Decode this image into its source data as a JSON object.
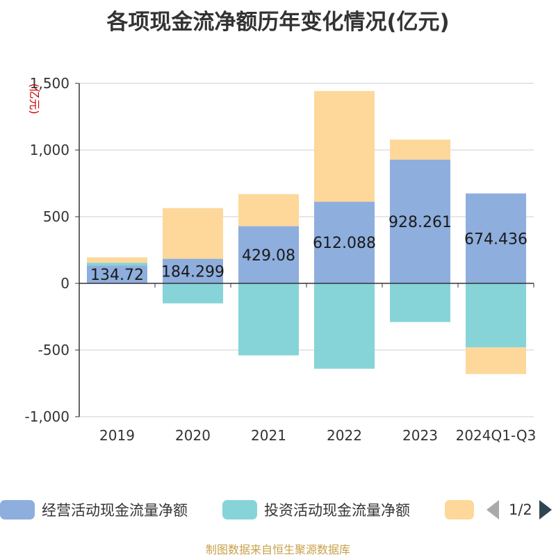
{
  "title": "各项现金流净额历年变化情况(亿元)",
  "unit_label": "(亿元)",
  "source": "制图数据来自恒生聚源数据库",
  "legend": {
    "items": [
      {
        "label": "经营活动现金流量净额",
        "color": "#8eaedd"
      },
      {
        "label": "投资活动现金流量净额",
        "color": "#86d4d8"
      },
      {
        "label": "",
        "color": "#fdd89a"
      }
    ],
    "page": "1/2"
  },
  "colors": {
    "operating": "#8eaedd",
    "investing": "#86d4d8",
    "financing": "#fdd89a",
    "grid": "#cccccc",
    "axis": "#333333"
  },
  "chart_data": {
    "type": "bar",
    "stacked": true,
    "categories": [
      "2019",
      "2020",
      "2021",
      "2022",
      "2023",
      "2024Q1-Q3"
    ],
    "series": [
      {
        "name": "经营活动现金流量净额",
        "values": [
          134.72,
          184.299,
          429.08,
          612.088,
          928.261,
          674.436
        ],
        "data_labels": [
          "134.72",
          "184.299",
          "429.08",
          "612.088",
          "928.261",
          "674.436"
        ]
      },
      {
        "name": "投资活动现金流量净额",
        "values": [
          20,
          -150,
          -540,
          -640,
          -290,
          -480
        ]
      },
      {
        "values": [
          40,
          380,
          240,
          830,
          150,
          -200
        ]
      }
    ],
    "yticks": [
      -1000,
      -500,
      0,
      500,
      1000,
      1500
    ],
    "ytick_labels": [
      "-1,000",
      "-500",
      "0",
      "500",
      "1,000",
      "1,500"
    ],
    "ylim": [
      -1000,
      1500
    ],
    "grid": true
  }
}
